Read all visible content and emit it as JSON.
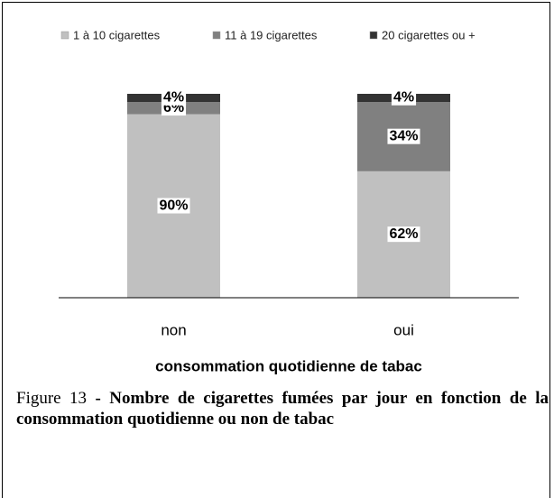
{
  "chart_data": {
    "type": "stacked_bar",
    "categories": [
      "non",
      "oui"
    ],
    "series": [
      {
        "name": "1 à 10 cigarettes",
        "color": "#c0c0c0",
        "values": [
          90,
          62
        ],
        "value_labels": [
          "90%",
          "62%"
        ]
      },
      {
        "name": "11 à 19 cigarettes",
        "color": "#808080",
        "values": [
          6,
          34
        ],
        "value_labels": [
          "6%",
          "34%"
        ]
      },
      {
        "name": "20 cigarettes ou +",
        "color": "#333333",
        "values": [
          4,
          4
        ],
        "value_labels": [
          "4%",
          "4%"
        ]
      }
    ],
    "xlabel": "consommation quotidienne de tabac",
    "ylim": [
      0,
      100
    ],
    "legend": "top"
  },
  "caption": {
    "label": "Figure 13",
    "text": "- Nombre de cigarettes fumées par jour en fonction de la consommation quotidienne ou non de tabac"
  }
}
